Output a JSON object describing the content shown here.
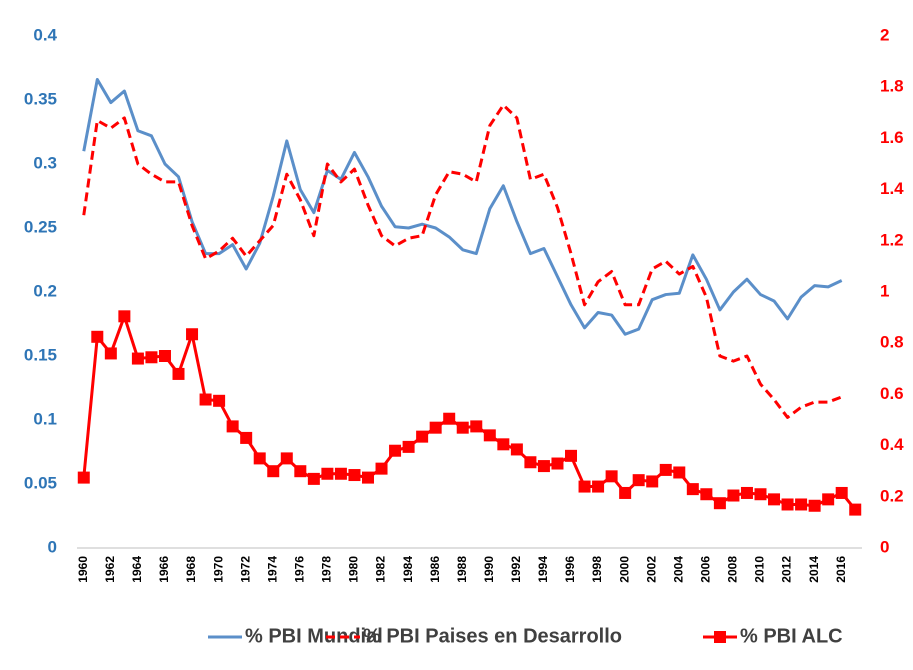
{
  "chart_data": {
    "type": "line",
    "x": [
      1960,
      1961,
      1962,
      1963,
      1964,
      1965,
      1966,
      1967,
      1968,
      1969,
      1970,
      1971,
      1972,
      1973,
      1974,
      1975,
      1976,
      1977,
      1978,
      1979,
      1980,
      1981,
      1982,
      1983,
      1984,
      1985,
      1986,
      1987,
      1988,
      1989,
      1990,
      1991,
      1992,
      1993,
      1994,
      1995,
      1996,
      1997,
      1998,
      1999,
      2000,
      2001,
      2002,
      2003,
      2004,
      2005,
      2006,
      2007,
      2008,
      2009,
      2010,
      2011,
      2012,
      2013,
      2014,
      2015,
      2016,
      2017
    ],
    "xlim": [
      1959.5,
      2017.5
    ],
    "xticks": [
      1960,
      1962,
      1964,
      1966,
      1968,
      1970,
      1972,
      1974,
      1976,
      1978,
      1980,
      1982,
      1984,
      1986,
      1988,
      1990,
      1992,
      1994,
      1996,
      1998,
      2000,
      2002,
      2004,
      2006,
      2008,
      2010,
      2012,
      2014,
      2016
    ],
    "ylim": [
      0,
      0.4
    ],
    "yticks": [
      0,
      0.05,
      0.1,
      0.15,
      0.2,
      0.25,
      0.3,
      0.35,
      0.4
    ],
    "y2lim": [
      0,
      2
    ],
    "y2ticks": [
      0,
      0.2,
      0.4,
      0.6,
      0.8,
      1,
      1.2,
      1.4,
      1.6,
      1.8,
      2
    ],
    "ycolor": "#2e75b6",
    "y2color": "#ff0000",
    "legend": "bottom",
    "series": [
      {
        "name": "% PBI Mundial",
        "color": "#5b8fc9",
        "axis": "y",
        "values": [
          0.31,
          0.366,
          0.348,
          0.357,
          0.326,
          0.322,
          0.3,
          0.29,
          0.255,
          0.23,
          0.23,
          0.237,
          0.218,
          0.238,
          0.275,
          0.318,
          0.28,
          0.262,
          0.295,
          0.288,
          0.309,
          0.29,
          0.267,
          0.251,
          0.25,
          0.253,
          0.25,
          0.243,
          0.233,
          0.23,
          0.265,
          0.283,
          0.255,
          0.23,
          0.234,
          0.212,
          0.19,
          0.172,
          0.184,
          0.182,
          0.167,
          0.171,
          0.194,
          0.198,
          0.199,
          0.229,
          0.21,
          0.186,
          0.2,
          0.21,
          0.198,
          0.193,
          0.179,
          0.196,
          0.205,
          0.204,
          0.209,
          null
        ]
      },
      {
        "name": "% PBI Paises en Desarrollo",
        "color": "#ff0000",
        "axis": "y2",
        "dash": true,
        "values": [
          1.3,
          1.67,
          1.64,
          1.68,
          1.5,
          1.46,
          1.43,
          1.43,
          1.26,
          1.13,
          1.16,
          1.21,
          1.14,
          1.2,
          1.26,
          1.46,
          1.36,
          1.22,
          1.5,
          1.43,
          1.48,
          1.34,
          1.22,
          1.18,
          1.21,
          1.22,
          1.38,
          1.47,
          1.46,
          1.43,
          1.65,
          1.73,
          1.68,
          1.44,
          1.46,
          1.33,
          1.15,
          0.95,
          1.04,
          1.08,
          0.95,
          0.95,
          1.09,
          1.12,
          1.07,
          1.1,
          0.98,
          0.75,
          0.73,
          0.75,
          0.64,
          0.58,
          0.51,
          0.55,
          0.57,
          0.57,
          0.59,
          null
        ]
      },
      {
        "name": "% PBI ALC",
        "color": "#ff0000",
        "axis": "y",
        "marker": "square",
        "values": [
          0.055,
          0.165,
          0.152,
          0.181,
          0.148,
          0.149,
          0.15,
          0.136,
          0.167,
          0.116,
          0.115,
          0.095,
          0.086,
          0.07,
          0.06,
          0.07,
          0.06,
          0.054,
          0.058,
          0.058,
          0.057,
          0.055,
          0.062,
          0.076,
          0.079,
          0.087,
          0.094,
          0.101,
          0.094,
          0.095,
          0.088,
          0.081,
          0.077,
          0.067,
          0.064,
          0.066,
          0.072,
          0.048,
          0.048,
          0.056,
          0.043,
          0.053,
          0.052,
          0.061,
          0.059,
          0.046,
          0.042,
          0.035,
          0.041,
          0.043,
          0.042,
          0.038,
          0.034,
          0.034,
          0.033,
          0.038,
          0.043,
          0.03
        ]
      }
    ]
  }
}
